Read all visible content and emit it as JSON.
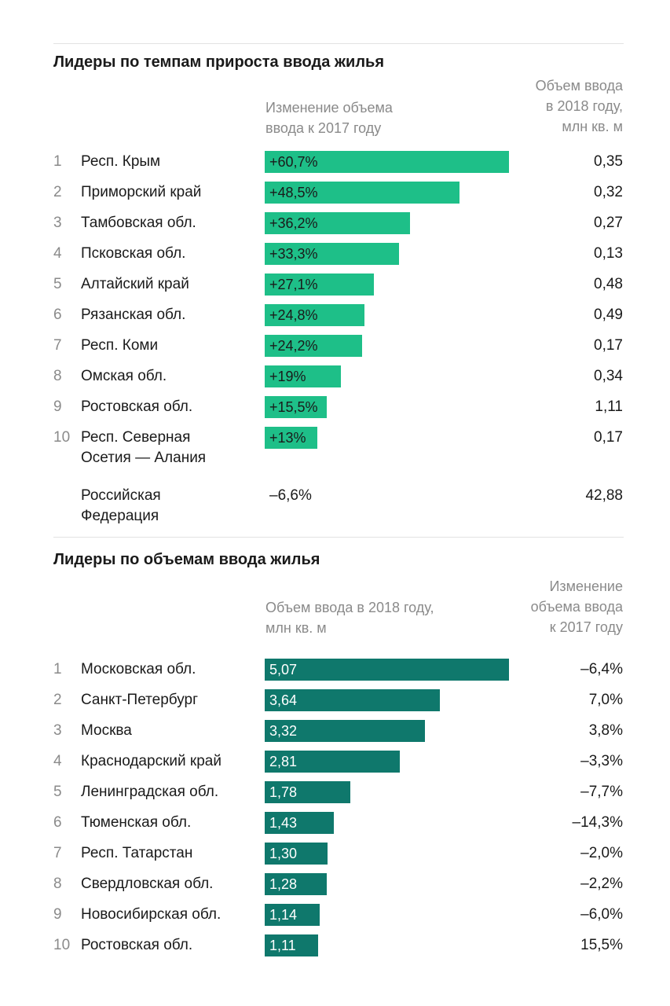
{
  "chart_data": [
    {
      "type": "bar",
      "title": "Лидеры по темпам прироста ввода жилья",
      "value_header": "Изменение объема\nввода к 2017 году",
      "side_header": "Объем ввода\nв 2018 году,\nмлн кв. м",
      "color": "#1ebf88",
      "label_color": "#1a1a1a",
      "ranks": [
        1,
        2,
        3,
        4,
        5,
        6,
        7,
        8,
        9,
        10
      ],
      "categories": [
        "Респ. Крым",
        "Приморский край",
        "Тамбовская обл.",
        "Псковская обл.",
        "Алтайский край",
        "Рязанская обл.",
        "Респ. Коми",
        "Омская обл.",
        "Ростовская обл.",
        "Респ. Северная\nОсетия — Алания"
      ],
      "values": [
        60.7,
        48.5,
        36.2,
        33.3,
        27.1,
        24.8,
        24.2,
        19,
        15.5,
        13
      ],
      "value_labels": [
        "+60,7%",
        "+48,5%",
        "+36,2%",
        "+33,3%",
        "+27,1%",
        "+24,8%",
        "+24,2%",
        "+19%",
        "+15,5%",
        "+13%"
      ],
      "side_labels": [
        "0,35",
        "0,32",
        "0,27",
        "0,13",
        "0,48",
        "0,49",
        "0,17",
        "0,34",
        "1,11",
        "0,17"
      ],
      "total": {
        "name": "Российская\nФедерация",
        "value_label": "–6,6%",
        "side_label": "42,88"
      }
    },
    {
      "type": "bar",
      "title": "Лидеры по объемам ввода жилья",
      "value_header": "Объем ввода в 2018 году,\nмлн кв. м",
      "side_header": "Изменение\nобъема ввода\nк 2017 году",
      "color": "#0f786c",
      "label_color": "#ffffff",
      "ranks": [
        1,
        2,
        3,
        4,
        5,
        6,
        7,
        8,
        9,
        10
      ],
      "categories": [
        "Московская обл.",
        "Санкт-Петербург",
        "Москва",
        "Краснодарский край",
        "Ленинградская обл.",
        "Тюменская обл.",
        "Респ. Татарстан",
        "Свердловская обл.",
        "Новосибирская обл.",
        "Ростовская обл."
      ],
      "values": [
        5.07,
        3.64,
        3.32,
        2.81,
        1.78,
        1.43,
        1.3,
        1.28,
        1.14,
        1.11
      ],
      "value_labels": [
        "5,07",
        "3,64",
        "3,32",
        "2,81",
        "1,78",
        "1,43",
        "1,30",
        "1,28",
        "1,14",
        "1,11"
      ],
      "side_labels": [
        "–6,4%",
        "7,0%",
        "3,8%",
        "–3,3%",
        "–7,7%",
        "–14,3%",
        "–2,0%",
        "–2,2%",
        "–6,0%",
        "15,5%"
      ]
    }
  ]
}
